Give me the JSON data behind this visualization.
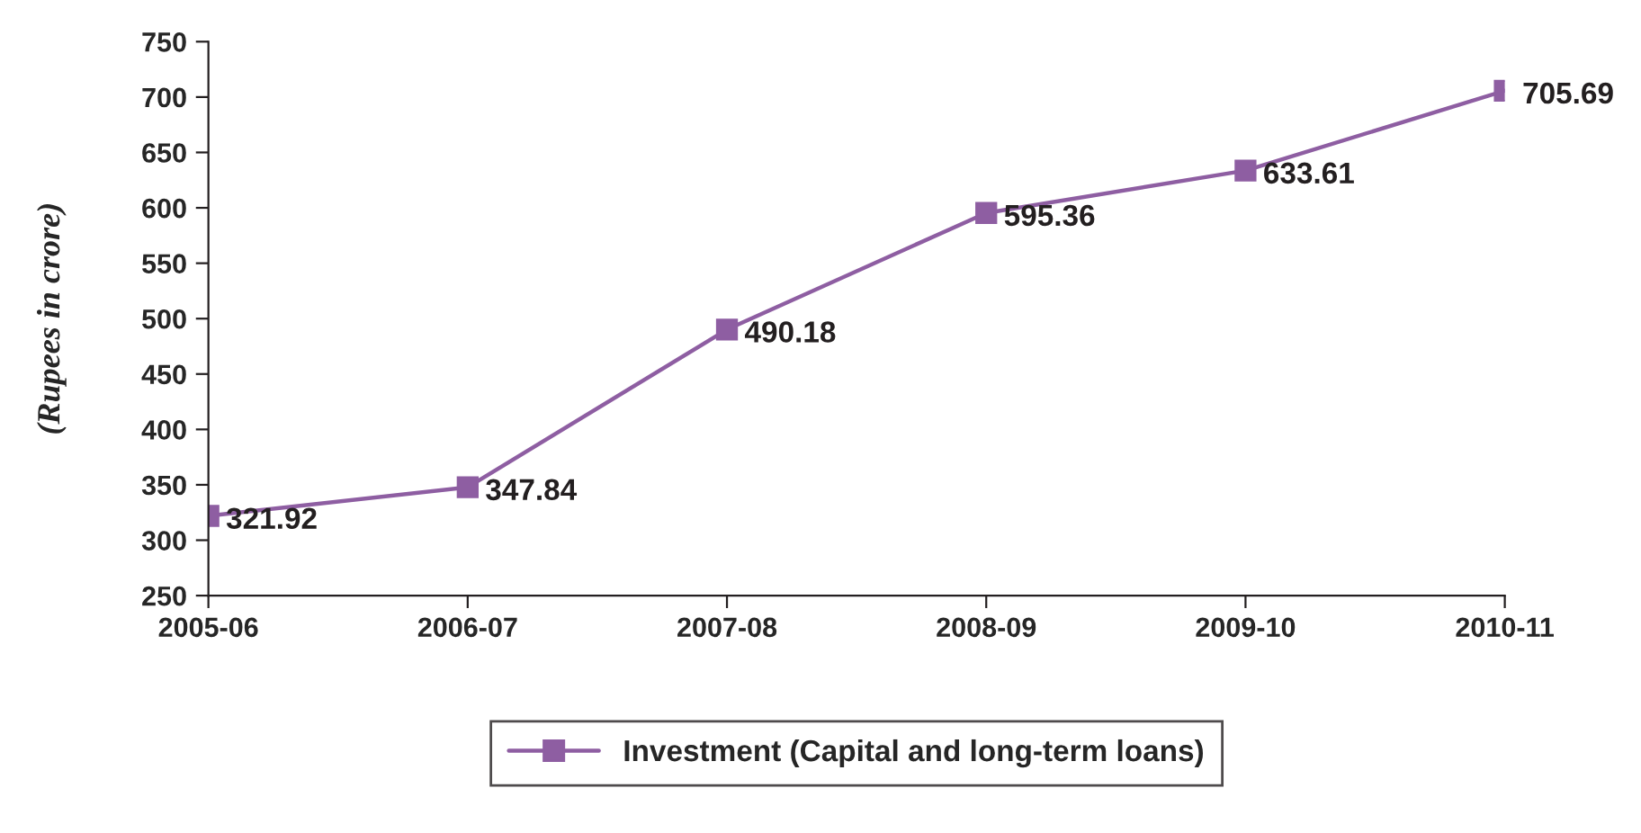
{
  "chart_data": {
    "type": "line",
    "ylabel": "(Rupees in crore)",
    "categories": [
      "2005-06",
      "2006-07",
      "2007-08",
      "2008-09",
      "2009-10",
      "2010-11"
    ],
    "series": [
      {
        "name": "Investment (Capital and long-term loans)",
        "color": "#8e5ea2",
        "values": [
          321.92,
          347.84,
          490.18,
          595.36,
          633.61,
          705.69
        ]
      }
    ],
    "ylim": [
      250,
      750
    ],
    "yticks": [
      250,
      300,
      350,
      400,
      450,
      500,
      550,
      600,
      650,
      700,
      750
    ],
    "grid": false,
    "legend": "bottom",
    "marker": "square",
    "line_style": "solid",
    "data_labels": true
  }
}
